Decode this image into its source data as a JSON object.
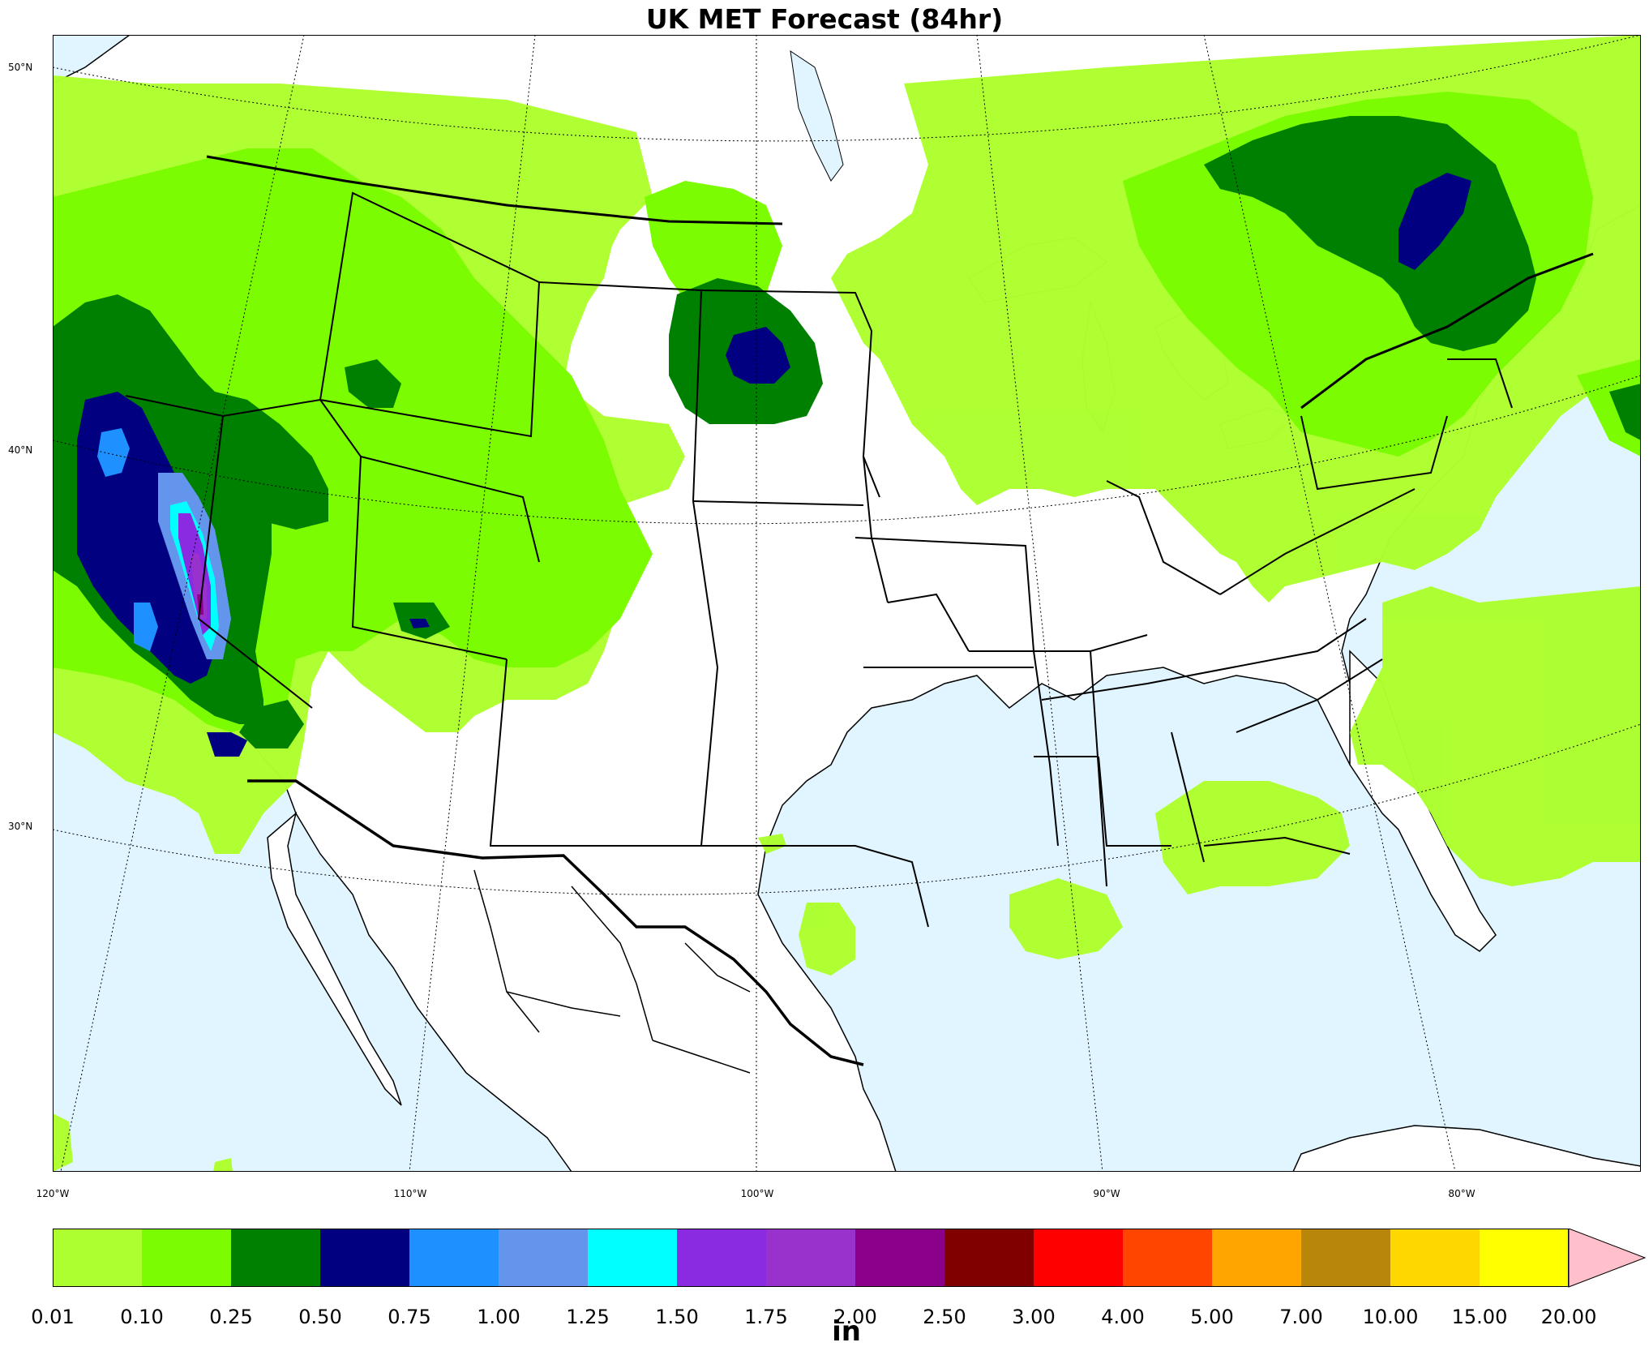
{
  "title": "UK MET Forecast (84hr)",
  "lat_labels": [
    "50°N",
    "40°N",
    "30°N"
  ],
  "lon_labels": [
    "120°W",
    "110°W",
    "100°W",
    "90°W",
    "80°W"
  ],
  "colorbar": {
    "ticks": [
      "0.01",
      "0.10",
      "0.25",
      "0.50",
      "0.75",
      "1.00",
      "1.25",
      "1.50",
      "1.75",
      "2.00",
      "2.50",
      "3.00",
      "4.00",
      "5.00",
      "7.00",
      "10.00",
      "15.00",
      "20.00"
    ],
    "colors": [
      "#adff2f",
      "#7cfc00",
      "#008000",
      "#000080",
      "#1e90ff",
      "#6495ed",
      "#00ffff",
      "#8a2be2",
      "#9932cc",
      "#8b008b",
      "#800000",
      "#ff0000",
      "#ff4500",
      "#ffa500",
      "#b8860b",
      "#ffd700",
      "#ffff00"
    ],
    "extend_color": "#ffc0cb",
    "units": "in"
  },
  "map_colors": {
    "water": "#e0f5ff",
    "land": "#ffffff"
  }
}
